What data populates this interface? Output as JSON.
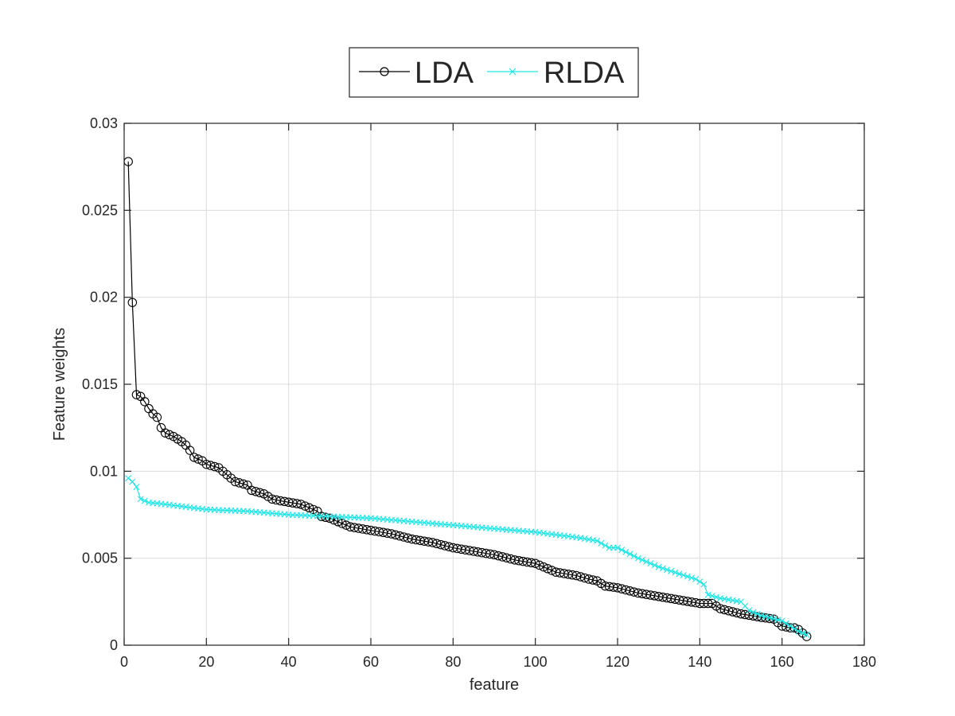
{
  "chart_data": {
    "type": "line",
    "title": "",
    "xlabel": "feature",
    "ylabel": "Feature weights",
    "xlim": [
      0,
      180
    ],
    "ylim": [
      0,
      0.03
    ],
    "xticks": [
      0,
      20,
      40,
      60,
      80,
      100,
      120,
      140,
      160,
      180
    ],
    "xtick_labels": [
      "0",
      "20",
      "40",
      "60",
      "80",
      "100",
      "120",
      "140",
      "160",
      "180"
    ],
    "yticks": [
      0,
      0.005,
      0.01,
      0.015,
      0.02,
      0.025,
      0.03
    ],
    "ytick_labels": [
      "0",
      "0.005",
      "0.01",
      "0.015",
      "0.02",
      "0.025",
      "0.03"
    ],
    "grid": true,
    "legend": {
      "placement": "top-center-outside",
      "orientation": "horizontal"
    },
    "series": [
      {
        "name": "LDA",
        "color": "#000000",
        "marker": "circle",
        "key_points": [
          [
            1,
            0.0278
          ],
          [
            2,
            0.0197
          ],
          [
            3,
            0.0144
          ],
          [
            4,
            0.0143
          ],
          [
            5,
            0.014
          ],
          [
            6,
            0.0136
          ],
          [
            7,
            0.0133
          ],
          [
            8,
            0.0131
          ],
          [
            9,
            0.0125
          ],
          [
            10,
            0.0122
          ],
          [
            12,
            0.012
          ],
          [
            14,
            0.0117
          ],
          [
            15,
            0.0115
          ],
          [
            16,
            0.0112
          ],
          [
            17,
            0.0108
          ],
          [
            19,
            0.0106
          ],
          [
            20,
            0.0104
          ],
          [
            23,
            0.0102
          ],
          [
            25,
            0.0098
          ],
          [
            27,
            0.0094
          ],
          [
            30,
            0.0092
          ],
          [
            31,
            0.0089
          ],
          [
            34,
            0.0087
          ],
          [
            36,
            0.0084
          ],
          [
            38,
            0.0083
          ],
          [
            43,
            0.0081
          ],
          [
            45,
            0.0079
          ],
          [
            47,
            0.0077
          ],
          [
            48,
            0.0074
          ],
          [
            50,
            0.0073
          ],
          [
            53,
            0.007
          ],
          [
            55,
            0.0068
          ],
          [
            60,
            0.0066
          ],
          [
            65,
            0.0064
          ],
          [
            70,
            0.0061
          ],
          [
            75,
            0.0059
          ],
          [
            80,
            0.0056
          ],
          [
            85,
            0.0054
          ],
          [
            90,
            0.0052
          ],
          [
            95,
            0.0049
          ],
          [
            100,
            0.0047
          ],
          [
            103,
            0.0044
          ],
          [
            105,
            0.0042
          ],
          [
            110,
            0.004
          ],
          [
            113,
            0.0038
          ],
          [
            115,
            0.0037
          ],
          [
            117,
            0.0034
          ],
          [
            120,
            0.0033
          ],
          [
            125,
            0.003
          ],
          [
            130,
            0.0028
          ],
          [
            135,
            0.0026
          ],
          [
            140,
            0.0024
          ],
          [
            143,
            0.0024
          ],
          [
            145,
            0.0021
          ],
          [
            150,
            0.0018
          ],
          [
            155,
            0.0016
          ],
          [
            158,
            0.0015
          ],
          [
            160,
            0.0011
          ],
          [
            162,
            0.001
          ],
          [
            163,
            0.001
          ],
          [
            164,
            0.0009
          ],
          [
            165,
            0.0007
          ],
          [
            166,
            0.0005
          ]
        ]
      },
      {
        "name": "RLDA",
        "color": "#1ee7e7",
        "marker": "x",
        "key_points": [
          [
            1,
            0.0096
          ],
          [
            2,
            0.0094
          ],
          [
            3,
            0.0091
          ],
          [
            4,
            0.0084
          ],
          [
            6,
            0.0082
          ],
          [
            10,
            0.0081
          ],
          [
            20,
            0.0078
          ],
          [
            30,
            0.0077
          ],
          [
            40,
            0.0075
          ],
          [
            50,
            0.0074
          ],
          [
            60,
            0.0073
          ],
          [
            70,
            0.0071
          ],
          [
            80,
            0.0069
          ],
          [
            90,
            0.0067
          ],
          [
            100,
            0.0065
          ],
          [
            110,
            0.0062
          ],
          [
            115,
            0.006
          ],
          [
            118,
            0.0056
          ],
          [
            120,
            0.0056
          ],
          [
            125,
            0.005
          ],
          [
            130,
            0.0045
          ],
          [
            135,
            0.0041
          ],
          [
            139,
            0.0038
          ],
          [
            141,
            0.0035
          ],
          [
            142,
            0.0029
          ],
          [
            145,
            0.0027
          ],
          [
            150,
            0.0025
          ],
          [
            152,
            0.002
          ],
          [
            155,
            0.0017
          ],
          [
            160,
            0.0014
          ],
          [
            162,
            0.0011
          ],
          [
            164,
            0.0008
          ],
          [
            166,
            0.0006
          ]
        ]
      }
    ],
    "n_points": 166
  }
}
